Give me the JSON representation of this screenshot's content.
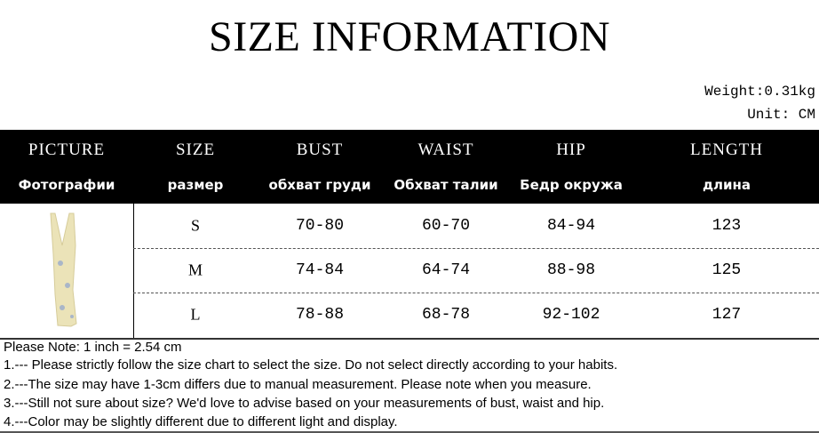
{
  "title": "SIZE INFORMATION",
  "weight": "Weight:0.31kg",
  "unit": "Unit: CM",
  "columns": [
    {
      "en": "PICTURE",
      "ru": "Фотографии"
    },
    {
      "en": "SIZE",
      "ru": "размер"
    },
    {
      "en": "BUST",
      "ru": "обхват груди"
    },
    {
      "en": "WAIST",
      "ru": "Обхват талии"
    },
    {
      "en": "HIP",
      "ru": "Бедр окружа"
    },
    {
      "en": "LENGTH",
      "ru": "длина"
    }
  ],
  "rows": [
    [
      "S",
      "70-80",
      "60-70",
      "84-94",
      "123"
    ],
    [
      "M",
      "74-84",
      "64-74",
      "88-98",
      "125"
    ],
    [
      "L",
      "78-88",
      "68-78",
      "92-102",
      "127"
    ]
  ],
  "notes": [
    "Please Note: 1 inch = 2.54 cm",
    " 1.--- Please strictly follow the size chart to select the size. Do not select directly according to your habits.",
    " 2.---The size may have 1-3cm differs due to manual measurement. Please note when you measure.",
    " 3.---Still not sure about size? We'd love to advise based on your measurements of bust, waist and hip.",
    " 4.---Color may be slightly different due to different light and display."
  ]
}
